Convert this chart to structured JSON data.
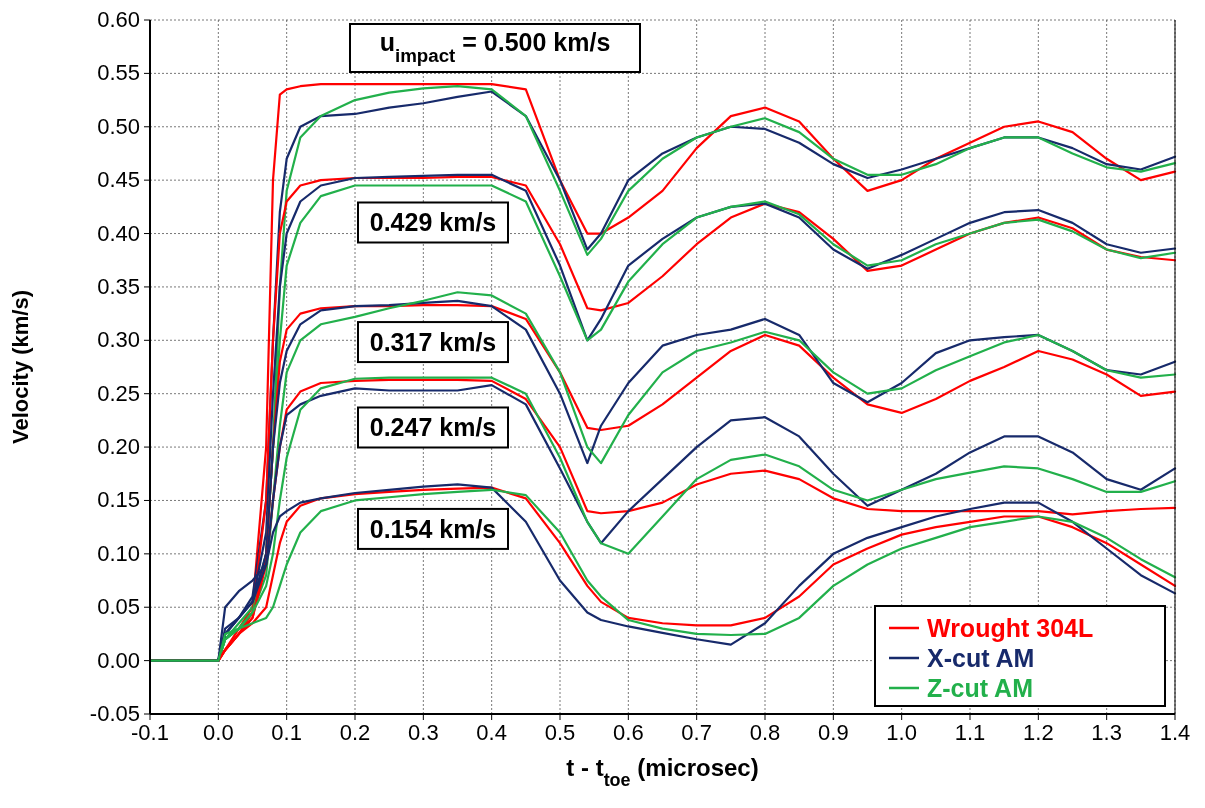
{
  "chart_data": {
    "type": "line",
    "xlabel": "t - t$_{toe}$ (microsec)",
    "ylabel": "Velocity (km/s)",
    "xlim": [
      -0.1,
      1.4
    ],
    "ylim": [
      -0.05,
      0.6
    ],
    "xticks": [
      {
        "value": -0.1,
        "label": "-0.1"
      },
      {
        "value": 0,
        "label": "0.0"
      },
      {
        "value": 0.1,
        "label": "0.1"
      },
      {
        "value": 0.2,
        "label": "0.2"
      },
      {
        "value": 0.3,
        "label": "0.3"
      },
      {
        "value": 0.4,
        "label": "0.4"
      },
      {
        "value": 0.5,
        "label": "0.5"
      },
      {
        "value": 0.6,
        "label": "0.6"
      },
      {
        "value": 0.7,
        "label": "0.7"
      },
      {
        "value": 0.8,
        "label": "0.8"
      },
      {
        "value": 0.9,
        "label": "0.9"
      },
      {
        "value": 1,
        "label": "1.0"
      },
      {
        "value": 1.1,
        "label": "1.1"
      },
      {
        "value": 1.2,
        "label": "1.2"
      },
      {
        "value": 1.3,
        "label": "1.3"
      },
      {
        "value": 1.4,
        "label": "1.4"
      }
    ],
    "yticks": [
      {
        "value": -0.05,
        "label": "-0.05"
      },
      {
        "value": 0,
        "label": "0.00"
      },
      {
        "value": 0.05,
        "label": "0.05"
      },
      {
        "value": 0.1,
        "label": "0.10"
      },
      {
        "value": 0.15,
        "label": "0.15"
      },
      {
        "value": 0.2,
        "label": "0.20"
      },
      {
        "value": 0.25,
        "label": "0.25"
      },
      {
        "value": 0.3,
        "label": "0.30"
      },
      {
        "value": 0.35,
        "label": "0.35"
      },
      {
        "value": 0.4,
        "label": "0.40"
      },
      {
        "value": 0.45,
        "label": "0.45"
      },
      {
        "value": 0.5,
        "label": "0.50"
      },
      {
        "value": 0.55,
        "label": "0.55"
      },
      {
        "value": 0.6,
        "label": "0.60"
      }
    ],
    "grid": true,
    "legend": "bottom right",
    "x": [
      -0.1,
      0,
      0.01,
      0.03,
      0.05,
      0.07,
      0.08,
      0.09,
      0.1,
      0.12,
      0.15,
      0.2,
      0.25,
      0.3,
      0.35,
      0.4,
      0.45,
      0.5,
      0.54,
      0.56,
      0.6,
      0.65,
      0.7,
      0.75,
      0.8,
      0.85,
      0.9,
      0.95,
      1.0,
      1.05,
      1.1,
      1.15,
      1.2,
      1.25,
      1.3,
      1.35,
      1.4
    ],
    "series": [
      {
        "name": "Wrought 304L",
        "color": "#ff0000",
        "values": [
          0,
          0,
          0.01,
          0.03,
          0.05,
          0.2,
          0.45,
          0.53,
          0.535,
          0.538,
          0.54,
          0.54,
          0.54,
          0.54,
          0.54,
          0.54,
          0.535,
          0.45,
          0.4,
          0.4,
          0.415,
          0.44,
          0.48,
          0.51,
          0.518,
          0.505,
          0.47,
          0.44,
          0.45,
          0.47,
          0.485,
          0.5,
          0.505,
          0.495,
          0.47,
          0.45,
          0.458
        ]
      },
      {
        "name": "X-cut AM",
        "color": "#172a6b",
        "values": [
          0,
          0,
          0.03,
          0.04,
          0.06,
          0.15,
          0.3,
          0.42,
          0.47,
          0.5,
          0.51,
          0.512,
          0.518,
          0.522,
          0.528,
          0.533,
          0.51,
          0.45,
          0.385,
          0.4,
          0.45,
          0.475,
          0.49,
          0.5,
          0.498,
          0.485,
          0.465,
          0.452,
          0.46,
          0.47,
          0.48,
          0.49,
          0.49,
          0.48,
          0.465,
          0.46,
          0.472
        ]
      },
      {
        "name": "Z-cut AM",
        "color": "#22b04b",
        "values": [
          0,
          0,
          0.02,
          0.035,
          0.05,
          0.1,
          0.2,
          0.35,
          0.44,
          0.49,
          0.51,
          0.525,
          0.532,
          0.536,
          0.538,
          0.535,
          0.51,
          0.44,
          0.38,
          0.395,
          0.44,
          0.47,
          0.49,
          0.5,
          0.508,
          0.495,
          0.47,
          0.455,
          0.455,
          0.465,
          0.48,
          0.49,
          0.49,
          0.475,
          0.462,
          0.458,
          0.466
        ]
      },
      {
        "color": "#ff0000",
        "values": [
          0,
          0,
          0.01,
          0.025,
          0.045,
          0.15,
          0.3,
          0.4,
          0.43,
          0.445,
          0.45,
          0.452,
          0.452,
          0.452,
          0.453,
          0.453,
          0.445,
          0.39,
          0.33,
          0.328,
          0.335,
          0.36,
          0.39,
          0.415,
          0.428,
          0.42,
          0.395,
          0.365,
          0.37,
          0.385,
          0.4,
          0.41,
          0.415,
          0.405,
          0.385,
          0.378,
          0.375
        ]
      },
      {
        "color": "#172a6b",
        "values": [
          0,
          0,
          0.025,
          0.04,
          0.055,
          0.12,
          0.25,
          0.35,
          0.4,
          0.43,
          0.445,
          0.452,
          0.453,
          0.454,
          0.455,
          0.455,
          0.44,
          0.37,
          0.3,
          0.32,
          0.37,
          0.395,
          0.415,
          0.425,
          0.428,
          0.415,
          0.385,
          0.367,
          0.38,
          0.395,
          0.41,
          0.42,
          0.422,
          0.41,
          0.39,
          0.382,
          0.386
        ]
      },
      {
        "color": "#22b04b",
        "values": [
          0,
          0,
          0.02,
          0.03,
          0.045,
          0.1,
          0.2,
          0.3,
          0.37,
          0.41,
          0.435,
          0.445,
          0.445,
          0.445,
          0.445,
          0.445,
          0.43,
          0.36,
          0.3,
          0.31,
          0.355,
          0.39,
          0.415,
          0.425,
          0.43,
          0.418,
          0.39,
          0.37,
          0.375,
          0.39,
          0.4,
          0.41,
          0.413,
          0.402,
          0.385,
          0.377,
          0.382
        ]
      },
      {
        "color": "#ff0000",
        "values": [
          0,
          0,
          0.01,
          0.025,
          0.04,
          0.1,
          0.2,
          0.28,
          0.31,
          0.325,
          0.33,
          0.332,
          0.332,
          0.333,
          0.333,
          0.332,
          0.32,
          0.27,
          0.218,
          0.216,
          0.22,
          0.24,
          0.265,
          0.29,
          0.305,
          0.295,
          0.265,
          0.24,
          0.232,
          0.245,
          0.262,
          0.275,
          0.29,
          0.282,
          0.268,
          0.248,
          0.252
        ]
      },
      {
        "color": "#172a6b",
        "values": [
          0,
          0,
          0.025,
          0.04,
          0.055,
          0.1,
          0.2,
          0.26,
          0.29,
          0.315,
          0.328,
          0.332,
          0.333,
          0.335,
          0.337,
          0.332,
          0.31,
          0.25,
          0.185,
          0.22,
          0.26,
          0.295,
          0.305,
          0.31,
          0.32,
          0.305,
          0.26,
          0.242,
          0.26,
          0.288,
          0.3,
          0.303,
          0.305,
          0.29,
          0.272,
          0.268,
          0.28
        ]
      },
      {
        "color": "#22b04b",
        "values": [
          0,
          0,
          0.02,
          0.03,
          0.045,
          0.08,
          0.15,
          0.22,
          0.27,
          0.3,
          0.315,
          0.322,
          0.33,
          0.337,
          0.345,
          0.342,
          0.325,
          0.27,
          0.2,
          0.185,
          0.23,
          0.27,
          0.29,
          0.298,
          0.308,
          0.3,
          0.27,
          0.25,
          0.255,
          0.272,
          0.285,
          0.298,
          0.305,
          0.29,
          0.272,
          0.265,
          0.268
        ]
      },
      {
        "color": "#ff0000",
        "values": [
          0,
          0,
          0.01,
          0.025,
          0.04,
          0.09,
          0.15,
          0.2,
          0.235,
          0.252,
          0.26,
          0.262,
          0.263,
          0.263,
          0.263,
          0.262,
          0.245,
          0.2,
          0.14,
          0.138,
          0.14,
          0.148,
          0.165,
          0.175,
          0.178,
          0.17,
          0.152,
          0.142,
          0.14,
          0.14,
          0.14,
          0.14,
          0.14,
          0.137,
          0.14,
          0.142,
          0.143
        ]
      },
      {
        "color": "#172a6b",
        "values": [
          0,
          0,
          0.025,
          0.04,
          0.055,
          0.09,
          0.15,
          0.2,
          0.23,
          0.24,
          0.248,
          0.255,
          0.253,
          0.253,
          0.253,
          0.258,
          0.24,
          0.18,
          0.13,
          0.11,
          0.14,
          0.17,
          0.2,
          0.225,
          0.228,
          0.21,
          0.175,
          0.145,
          0.16,
          0.175,
          0.195,
          0.21,
          0.21,
          0.195,
          0.17,
          0.16,
          0.18
        ]
      },
      {
        "color": "#22b04b",
        "values": [
          0,
          0,
          0.02,
          0.03,
          0.045,
          0.07,
          0.1,
          0.15,
          0.19,
          0.235,
          0.255,
          0.264,
          0.265,
          0.265,
          0.265,
          0.265,
          0.25,
          0.19,
          0.13,
          0.11,
          0.1,
          0.135,
          0.17,
          0.188,
          0.193,
          0.182,
          0.16,
          0.15,
          0.16,
          0.17,
          0.176,
          0.182,
          0.18,
          0.17,
          0.158,
          0.158,
          0.168
        ]
      },
      {
        "color": "#ff0000",
        "values": [
          0,
          0,
          0.01,
          0.025,
          0.035,
          0.05,
          0.08,
          0.11,
          0.13,
          0.145,
          0.152,
          0.156,
          0.158,
          0.16,
          0.161,
          0.162,
          0.152,
          0.11,
          0.07,
          0.055,
          0.04,
          0.035,
          0.033,
          0.033,
          0.04,
          0.06,
          0.09,
          0.105,
          0.118,
          0.125,
          0.13,
          0.135,
          0.135,
          0.125,
          0.11,
          0.09,
          0.07
        ]
      },
      {
        "color": "#172a6b",
        "values": [
          0,
          0,
          0.05,
          0.065,
          0.075,
          0.09,
          0.12,
          0.135,
          0.14,
          0.148,
          0.152,
          0.157,
          0.16,
          0.163,
          0.165,
          0.162,
          0.13,
          0.075,
          0.045,
          0.038,
          0.032,
          0.026,
          0.02,
          0.015,
          0.035,
          0.07,
          0.1,
          0.115,
          0.125,
          0.135,
          0.142,
          0.148,
          0.148,
          0.13,
          0.105,
          0.08,
          0.063
        ]
      },
      {
        "color": "#22b04b",
        "values": [
          0,
          0,
          0.025,
          0.03,
          0.035,
          0.04,
          0.05,
          0.07,
          0.09,
          0.12,
          0.14,
          0.15,
          0.153,
          0.156,
          0.158,
          0.16,
          0.155,
          0.12,
          0.075,
          0.06,
          0.038,
          0.03,
          0.025,
          0.024,
          0.025,
          0.04,
          0.07,
          0.09,
          0.105,
          0.115,
          0.125,
          0.13,
          0.135,
          0.13,
          0.115,
          0.095,
          0.078
        ]
      }
    ],
    "annotations": [
      "u$_{impact}$ = 0.500 km/s",
      "0.429 km/s",
      "0.317 km/s",
      "0.247 km/s",
      "0.154 km/s"
    ]
  }
}
